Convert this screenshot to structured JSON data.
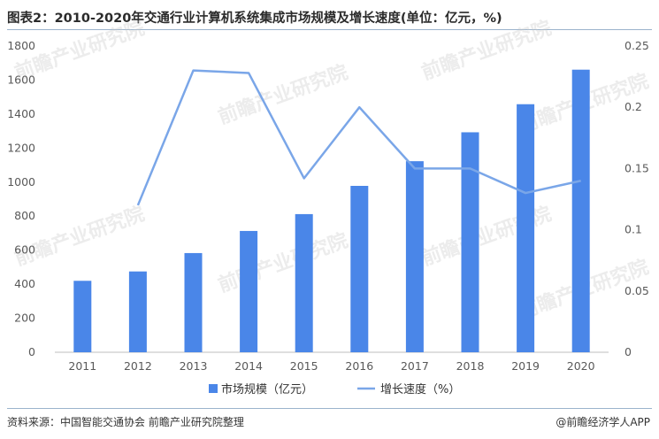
{
  "header": {
    "title": "图表2：2010-2020年交通行业计算机系统集成市场规模及增长速度(单位：亿元，%)"
  },
  "chart_data": {
    "type": "bar",
    "categories": [
      "2011",
      "2012",
      "2013",
      "2014",
      "2015",
      "2016",
      "2017",
      "2018",
      "2019",
      "2020"
    ],
    "series": [
      {
        "name": "市场规模（亿元）",
        "type": "bar",
        "axis": "left",
        "color": "#4a86e8",
        "values": [
          420,
          475,
          583,
          713,
          812,
          978,
          1123,
          1293,
          1458,
          1661
        ]
      },
      {
        "name": "增长速度（%）",
        "type": "line",
        "axis": "right",
        "color": "#7aa6e8",
        "values": [
          null,
          0.12,
          0.23,
          0.228,
          0.142,
          0.2,
          0.15,
          0.15,
          0.13,
          0.14
        ]
      }
    ],
    "ylim_left": [
      0,
      1800
    ],
    "yticks_left": [
      "0",
      "200",
      "400",
      "600",
      "800",
      "1000",
      "1200",
      "1400",
      "1600",
      "1800"
    ],
    "ylim_right": [
      0,
      0.25
    ],
    "yticks_right": [
      "0",
      "0.05",
      "0.1",
      "0.15",
      "0.2",
      "0.25"
    ],
    "grid": false,
    "legend_position": "bottom"
  },
  "watermark": {
    "text": "前瞻产业研究院"
  },
  "footer": {
    "source": "资料来源：中国智能交通协会 前瞻产业研究院整理",
    "brand": "@前瞻经济学人APP"
  }
}
